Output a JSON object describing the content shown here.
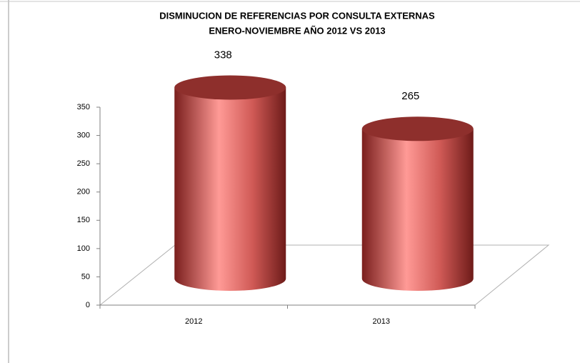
{
  "chart_data": {
    "type": "cylinder",
    "title": "DISMINUCION DE REFERENCIAS POR CONSULTA EXTERNAS",
    "subtitle": "ENERO-NOVIEMBRE AÑO 2012 VS 2013",
    "categories": [
      "2012",
      "2013"
    ],
    "values": [
      338,
      265
    ],
    "color": "#c0504d",
    "ylim": [
      0,
      350
    ],
    "yticks": [
      0,
      50,
      100,
      150,
      200,
      250,
      300,
      350
    ]
  }
}
